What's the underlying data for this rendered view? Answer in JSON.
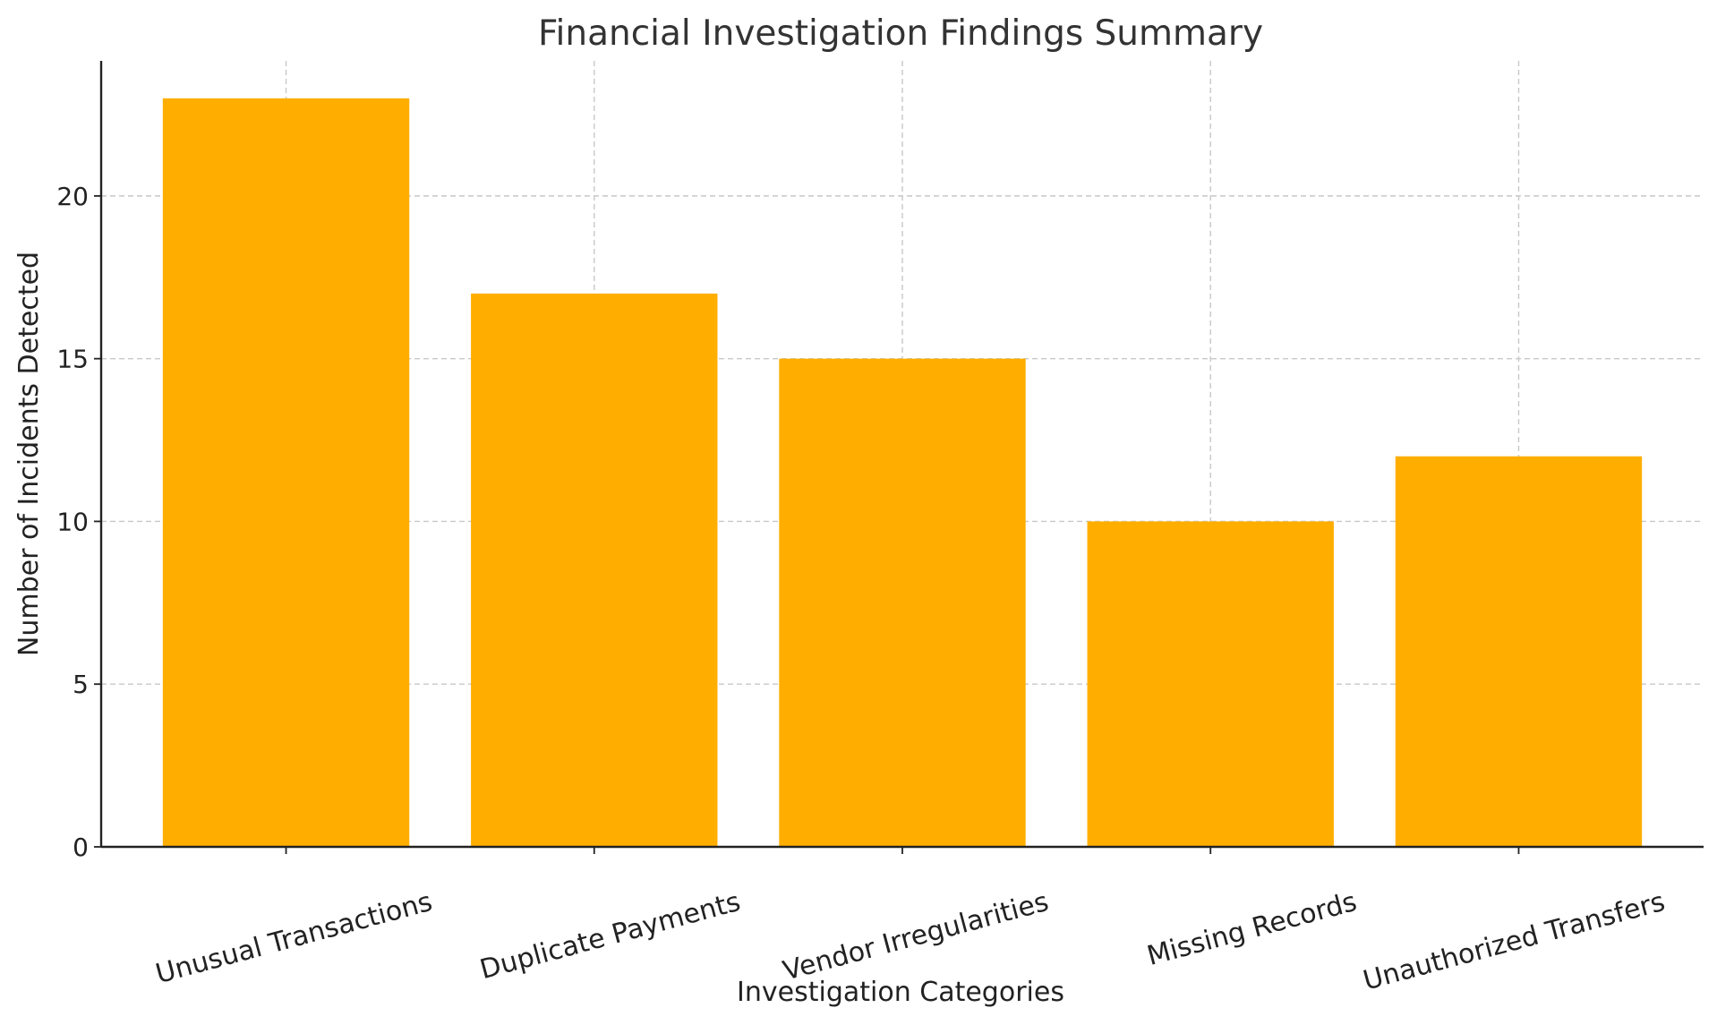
{
  "chart_data": {
    "type": "bar",
    "title": "Financial Investigation Findings Summary",
    "xlabel": "Investigation Categories",
    "ylabel": "Number of Incidents Detected",
    "categories": [
      "Unusual Transactions",
      "Duplicate Payments",
      "Vendor Irregularities",
      "Missing Records",
      "Unauthorized Transfers"
    ],
    "values": [
      23,
      17,
      15,
      10,
      12
    ],
    "ylim": [
      0,
      24.15
    ],
    "yticks": [
      0,
      5,
      10,
      15,
      20
    ],
    "grid": true,
    "bar_color": "#FFAE00",
    "label_rotation_deg": -15
  }
}
